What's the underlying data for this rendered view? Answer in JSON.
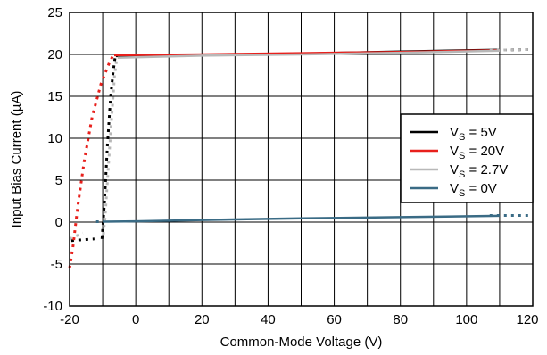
{
  "chart_data": {
    "type": "line",
    "title": "",
    "xlabel": "Common-Mode Voltage (V)",
    "ylabel": "Input Bias Current (µA)",
    "xlim": [
      -20,
      120
    ],
    "ylim": [
      -10,
      25
    ],
    "xticks": [
      -20,
      0,
      20,
      40,
      60,
      80,
      100,
      120
    ],
    "yticks": [
      -10,
      -5,
      0,
      5,
      10,
      15,
      20,
      25
    ],
    "xtick_labels": [
      "-20",
      "0",
      "20",
      "40",
      "60",
      "80",
      "100",
      "120"
    ],
    "ytick_labels": [
      "-10",
      "-5",
      "0",
      "5",
      "10",
      "15",
      "20",
      "25"
    ],
    "grid": true,
    "grid_columns": 14,
    "legend_position": "right",
    "series": [
      {
        "legend_main": "V",
        "legend_sub": "S",
        "legend_value": " = 5V",
        "color": "#000000",
        "dashed": [
          [
            [
              -19.5,
              -2.2
            ],
            [
              -12.5,
              -2.0
            ]
          ],
          [
            [
              -10.2,
              -2.0
            ],
            [
              -9.5,
              2.0
            ],
            [
              -8.6,
              9.0
            ],
            [
              -7.6,
              15.0
            ],
            [
              -6.8,
              18.0
            ],
            [
              -6.2,
              19.8
            ]
          ],
          [
            [
              107,
              20.5
            ],
            [
              120,
              20.6
            ]
          ]
        ],
        "solid": [
          [
            -6.0,
            19.8
          ],
          [
            0,
            19.85
          ],
          [
            20,
            19.95
          ],
          [
            50,
            20.1
          ],
          [
            80,
            20.35
          ],
          [
            110,
            20.55
          ]
        ]
      },
      {
        "legend_main": "V",
        "legend_sub": "S",
        "legend_value": " = 20V",
        "color": "#e8201c",
        "dashed": [
          [
            [
              -20,
              -5.5
            ],
            [
              -19,
              -3.0
            ],
            [
              -17.5,
              2.0
            ],
            [
              -15.5,
              7.5
            ],
            [
              -13.2,
              12.5
            ],
            [
              -10.5,
              16.5
            ],
            [
              -8.0,
              19.0
            ],
            [
              -6.8,
              19.9
            ]
          ]
        ],
        "solid": [
          [
            -6.5,
            19.9
          ],
          [
            20,
            20.0
          ],
          [
            50,
            20.15
          ],
          [
            80,
            20.3
          ],
          [
            110,
            20.5
          ]
        ]
      },
      {
        "legend_main": "V",
        "legend_sub": "S",
        "legend_value": " = 2.7V",
        "color": "#b8b8b8",
        "dashed": [
          [
            [
              -20,
              -2.0
            ],
            [
              -16,
              -1.3
            ]
          ],
          [
            [
              -9.8,
              -1.5
            ],
            [
              -9.3,
              0.5
            ],
            [
              -8.2,
              7.0
            ],
            [
              -7.2,
              13.0
            ],
            [
              -6.4,
              17.5
            ],
            [
              -5.7,
              19.6
            ]
          ],
          [
            [
              107,
              20.5
            ],
            [
              120,
              20.6
            ]
          ]
        ],
        "solid": [
          [
            -5.5,
            19.6
          ],
          [
            20,
            19.85
          ],
          [
            50,
            20.0
          ],
          [
            80,
            20.2
          ],
          [
            110,
            20.45
          ]
        ]
      },
      {
        "legend_main": "V",
        "legend_sub": "S",
        "legend_value": " = 0V",
        "color": "#3a6b85",
        "dashed": [
          [
            [
              -12,
              0.05
            ],
            [
              -10,
              0.05
            ]
          ],
          [
            [
              107,
              0.8
            ],
            [
              120,
              0.8
            ]
          ]
        ],
        "solid": [
          [
            -10,
            0.05
          ],
          [
            0,
            0.1
          ],
          [
            20,
            0.25
          ],
          [
            50,
            0.45
          ],
          [
            80,
            0.6
          ],
          [
            110,
            0.75
          ]
        ]
      }
    ]
  }
}
